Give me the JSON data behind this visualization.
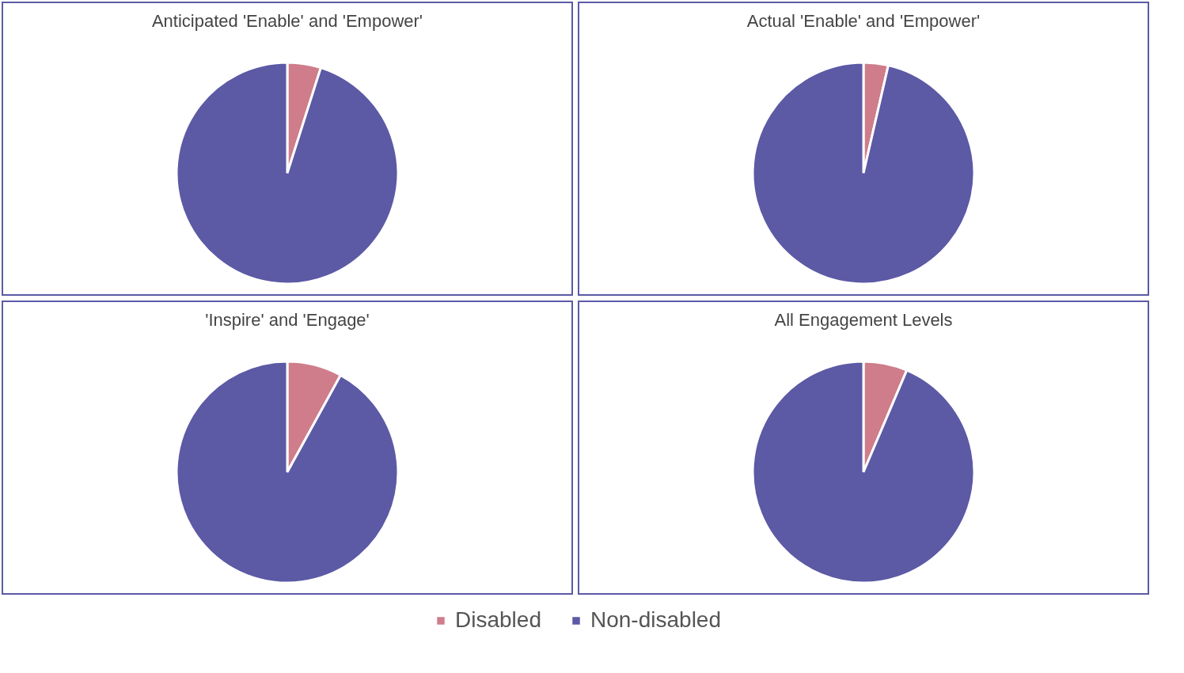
{
  "chart_data": [
    {
      "type": "pie",
      "title": "Anticipated 'Enable' and 'Empower'",
      "categories": [
        "Disabled",
        "Non-disabled"
      ],
      "values": [
        4.9,
        95.1
      ],
      "colors": [
        "#cf7d8b",
        "#5c59a5"
      ],
      "legend": "bottom"
    },
    {
      "type": "pie",
      "title": "Actual 'Enable' and 'Empower'",
      "categories": [
        null,
        null
      ],
      "values": [
        3.6,
        96.4
      ]
    },
    {
      "type": "pie",
      "title": "'Inspire' and 'Engage'",
      "categories": [
        null,
        null
      ],
      "values": [
        8,
        92
      ]
    },
    {
      "type": "pie",
      "title": "All Engagement Levels",
      "categories": [
        null,
        null
      ],
      "values": [
        6.4,
        93.6
      ]
    }
  ]
}
